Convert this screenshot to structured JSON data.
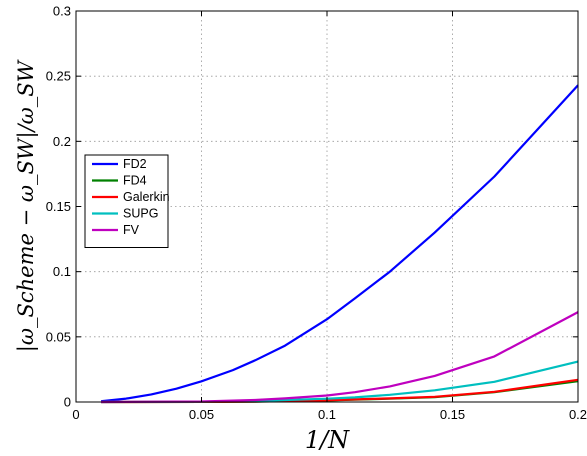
{
  "chart_data": {
    "type": "line",
    "xlabel": "1/N",
    "ylabel": "|ω_Scheme − ω_SW|/ω_SW",
    "xlim": [
      0,
      0.2
    ],
    "ylim": [
      0,
      0.3
    ],
    "xticks": [
      0,
      0.05,
      0.1,
      0.15,
      0.2
    ],
    "xtick_labels": [
      "0",
      "0.05",
      "0.1",
      "0.15",
      "0.2"
    ],
    "yticks": [
      0,
      0.05,
      0.1,
      0.15,
      0.2,
      0.25,
      0.3
    ],
    "ytick_labels": [
      "0",
      "0.05",
      "0.1",
      "0.15",
      "0.2",
      "0.25",
      "0.3"
    ],
    "grid": true,
    "legend_position": "center-left",
    "series": [
      {
        "name": "FD2",
        "color": "#0000ff",
        "x": [
          0.01,
          0.02,
          0.03,
          0.04,
          0.05,
          0.0625,
          0.0714,
          0.0833,
          0.1,
          0.1111,
          0.125,
          0.1429,
          0.1667,
          0.2
        ],
        "y": [
          0.0006,
          0.0026,
          0.0058,
          0.0102,
          0.0159,
          0.0245,
          0.032,
          0.0433,
          0.0635,
          0.0795,
          0.1,
          0.13,
          0.173,
          0.243
        ]
      },
      {
        "name": "FD4",
        "color": "#008000",
        "x": [
          0.01,
          0.05,
          0.0714,
          0.1,
          0.1111,
          0.125,
          0.1429,
          0.1667,
          0.2
        ],
        "y": [
          0,
          0.0001,
          0.0003,
          0.0012,
          0.0018,
          0.0025,
          0.0037,
          0.0075,
          0.016
        ]
      },
      {
        "name": "Galerkin",
        "color": "#ff0000",
        "x": [
          0.01,
          0.05,
          0.0714,
          0.1,
          0.1111,
          0.125,
          0.1429,
          0.1667,
          0.2
        ],
        "y": [
          0,
          0.0001,
          0.0004,
          0.0013,
          0.002,
          0.0028,
          0.004,
          0.0078,
          0.017
        ]
      },
      {
        "name": "SUPG",
        "color": "#00bfbf",
        "x": [
          0.01,
          0.05,
          0.0714,
          0.1,
          0.1111,
          0.125,
          0.1429,
          0.1667,
          0.2
        ],
        "y": [
          0,
          0.0002,
          0.0008,
          0.0025,
          0.0035,
          0.0055,
          0.009,
          0.0155,
          0.031
        ]
      },
      {
        "name": "FV",
        "color": "#bf00bf",
        "x": [
          0.01,
          0.05,
          0.0714,
          0.0833,
          0.1,
          0.1111,
          0.125,
          0.1429,
          0.1667,
          0.2
        ],
        "y": [
          0,
          0.0004,
          0.0015,
          0.0028,
          0.005,
          0.0075,
          0.012,
          0.02,
          0.035,
          0.069
        ]
      }
    ]
  }
}
